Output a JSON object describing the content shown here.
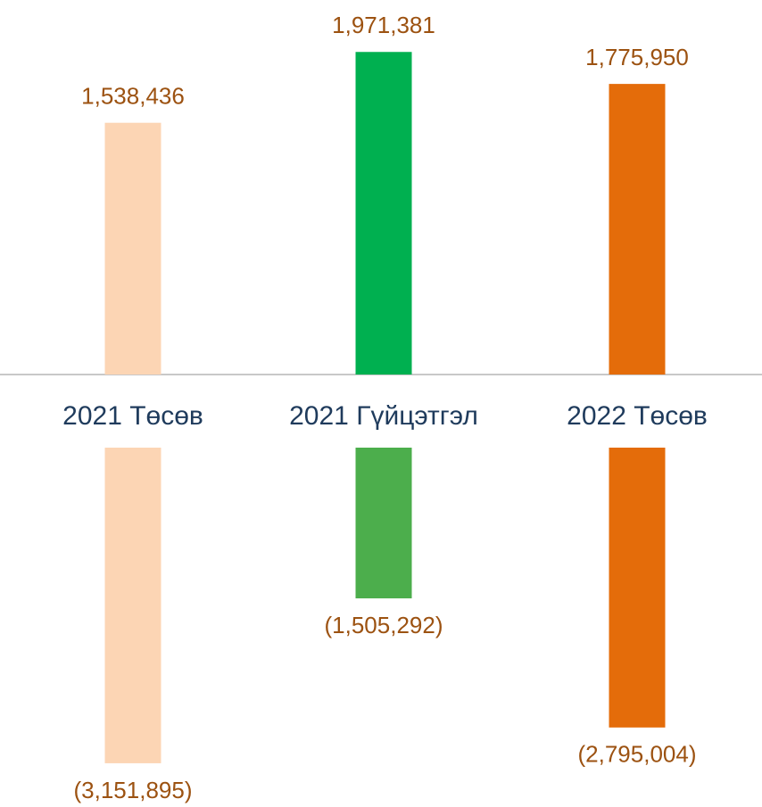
{
  "chart_data": [
    {
      "type": "bar",
      "categories": [
        "2021 Төсөв",
        "2021 Гүйцэтгэл",
        "2022 Төсөв"
      ],
      "values": [
        1538436,
        1971381,
        1775950
      ],
      "value_labels": [
        "1,538,436",
        "1,971,381",
        "1,775,950"
      ],
      "colors": [
        "#fcd5b4",
        "#00b050",
        "#e46c0a"
      ],
      "ylim": [
        0,
        2000000
      ]
    },
    {
      "type": "bar",
      "values": [
        -3151895,
        -1505292,
        -2795004
      ],
      "value_labels": [
        "(3,151,895)",
        "(1,505,292)",
        "(2,795,004)"
      ],
      "colors": [
        "#fcd5b4",
        "#4cae4c",
        "#e46c0a"
      ],
      "ylim": [
        -3500000,
        0
      ]
    }
  ]
}
